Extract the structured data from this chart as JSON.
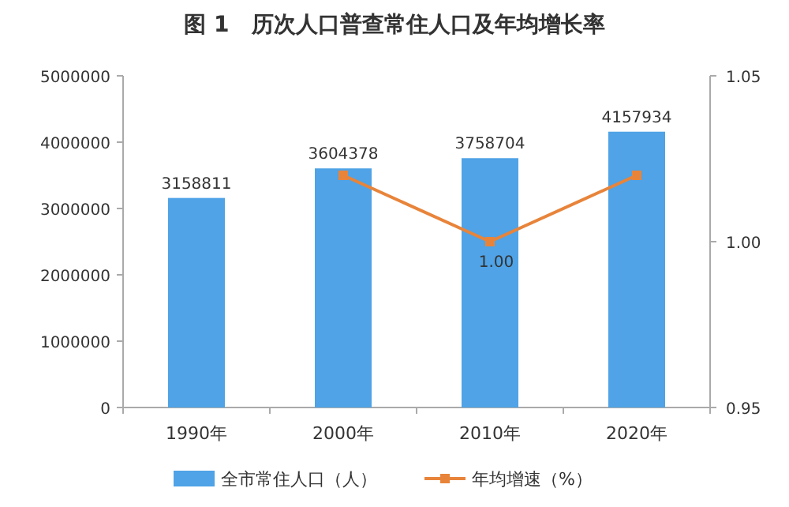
{
  "chart_data": {
    "type": "bar",
    "title": "图 1　历次人口普查常住人口及年均增长率",
    "categories": [
      "1990年",
      "2000年",
      "2010年",
      "2020年"
    ],
    "series": [
      {
        "name": "全市常住人口（人）",
        "color": "#4fa3e6",
        "values": [
          3158811,
          3604378,
          3758704,
          4157934
        ],
        "value_labels": [
          "3158811",
          "3604378",
          "3758704",
          "4157934"
        ]
      },
      {
        "name": "年均增速（%）",
        "type": "line",
        "axis": "y2",
        "color": "#e8843a",
        "marker": "square",
        "values": [
          null,
          1.02,
          1.0,
          1.02
        ],
        "value_labels": [
          null,
          null,
          "1.00",
          null
        ]
      }
    ],
    "ylim": [
      0,
      5000000
    ],
    "yticks": [
      0,
      1000000,
      2000000,
      3000000,
      4000000,
      5000000
    ],
    "y2lim": [
      0.95,
      1.05
    ],
    "y2ticks": [
      0.95,
      {
        "value": 1.0,
        "label": "1.00"
      },
      1.05
    ],
    "grid": false,
    "legend": "bottom"
  }
}
